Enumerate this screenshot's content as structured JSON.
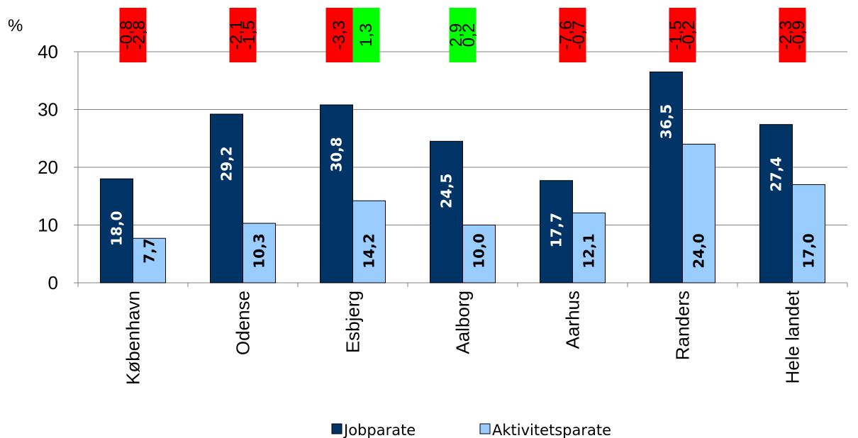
{
  "chart_data": {
    "type": "bar",
    "categories": [
      "København",
      "Odense",
      "Esbjerg",
      "Aalborg",
      "Aarhus",
      "Randers",
      "Hele landet"
    ],
    "series": [
      {
        "name": "Jobparate",
        "values": [
          18.0,
          29.2,
          30.8,
          24.5,
          17.7,
          36.5,
          27.4
        ],
        "labels": [
          "18,0",
          "29,2",
          "30,8",
          "24,5",
          "17,7",
          "36,5",
          "27,4"
        ],
        "color": "#003366"
      },
      {
        "name": "Aktivitetsparate",
        "values": [
          7.7,
          10.3,
          14.2,
          10.0,
          12.1,
          24.0,
          17.0
        ],
        "labels": [
          "7,7",
          "10,3",
          "14,2",
          "10,0",
          "12,1",
          "24,0",
          "17,0"
        ],
        "color": "#99CCFF"
      }
    ],
    "changes": [
      [
        {
          "value": -0.8,
          "label": "-0,8"
        },
        {
          "value": -2.8,
          "label": "-2,8"
        }
      ],
      [
        {
          "value": -2.1,
          "label": "-2,1"
        },
        {
          "value": -1.5,
          "label": "-1,5"
        }
      ],
      [
        {
          "value": -3.3,
          "label": "-3,3"
        },
        {
          "value": 1.3,
          "label": "1,3"
        }
      ],
      [
        {
          "value": 2.9,
          "label": "2,9"
        },
        {
          "value": 0.2,
          "label": "0,2"
        }
      ],
      [
        {
          "value": -7.6,
          "label": "-7,6"
        },
        {
          "value": -0.7,
          "label": "-0,7"
        }
      ],
      [
        {
          "value": -1.5,
          "label": "-1,5"
        },
        {
          "value": -0.2,
          "label": "-0,2"
        }
      ],
      [
        {
          "value": -2.3,
          "label": "-2,3"
        },
        {
          "value": -0.9,
          "label": "-0,9"
        }
      ]
    ],
    "ylabel": "%",
    "ylim": [
      0,
      40
    ],
    "yticks": [
      0,
      10,
      20,
      30,
      40
    ],
    "grid": true,
    "legend_position": "bottom",
    "colors": {
      "negative_box": "#FF0000",
      "positive_box": "#00FF00",
      "box_text": "#000000",
      "bar_label": "#FFFFFF",
      "bar_label_on_light": "#000000",
      "grid": "#808080"
    }
  }
}
